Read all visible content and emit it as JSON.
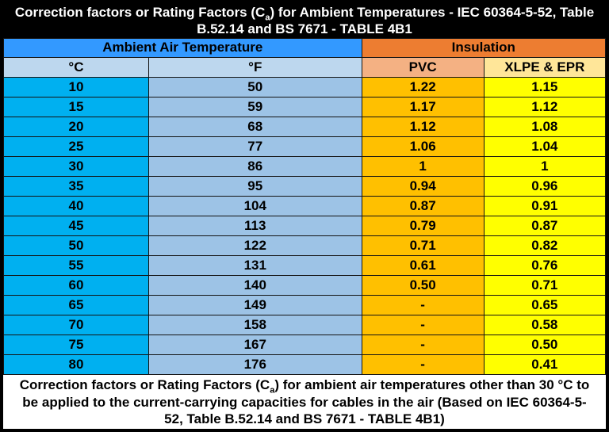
{
  "title": {
    "pre": "Correction factors or Rating Factors (C",
    "sub": "a",
    "post": ") for Ambient Temperatures - IEC 60364-5-52, Table B.52.14 and BS 7671 - TABLE 4B1"
  },
  "footer": {
    "pre": "Correction factors or Rating Factors (C",
    "sub": "a",
    "post": ") for ambient air temperatures other than 30 °C to be applied to the current-carrying capacities for cables in the air (Based on IEC 60364-5-52, Table B.52.14 and BS 7671 - TABLE 4B1)"
  },
  "chart_data": {
    "type": "table",
    "title": "Correction factors or Rating Factors (Ca) for Ambient Temperatures - IEC 60364-5-52, Table B.52.14 and BS 7671 - TABLE 4B1",
    "column_groups": [
      "Ambient Air Temperature",
      "Insulation"
    ],
    "columns": [
      "°C",
      "°F",
      "PVC",
      "XLPE & EPR"
    ],
    "rows": [
      [
        "10",
        "50",
        "1.22",
        "1.15"
      ],
      [
        "15",
        "59",
        "1.17",
        "1.12"
      ],
      [
        "20",
        "68",
        "1.12",
        "1.08"
      ],
      [
        "25",
        "77",
        "1.06",
        "1.04"
      ],
      [
        "30",
        "86",
        "1",
        "1"
      ],
      [
        "35",
        "95",
        "0.94",
        "0.96"
      ],
      [
        "40",
        "104",
        "0.87",
        "0.91"
      ],
      [
        "45",
        "113",
        "0.79",
        "0.87"
      ],
      [
        "50",
        "122",
        "0.71",
        "0.82"
      ],
      [
        "55",
        "131",
        "0.61",
        "0.76"
      ],
      [
        "60",
        "140",
        "0.50",
        "0.71"
      ],
      [
        "65",
        "149",
        "-",
        "0.65"
      ],
      [
        "70",
        "158",
        "-",
        "0.58"
      ],
      [
        "75",
        "167",
        "-",
        "0.50"
      ],
      [
        "80",
        "176",
        "-",
        "0.41"
      ]
    ],
    "caption": "Correction factors or Rating Factors (Ca) for ambient air temperatures other than 30 °C to be applied to the current-carrying capacities for cables in the air (Based on IEC 60364-5-52, Table B.52.14 and BS 7671 - TABLE 4B1)"
  },
  "colors": {
    "title_bg": "#000000",
    "title_text": "#ffffff",
    "ambient_group_bg": "#3399ff",
    "insulation_group_bg": "#ed7d31",
    "c_f_header_bg": "#bdd7ee",
    "pvc_header_bg": "#f4b183",
    "xlpe_header_bg": "#ffe699",
    "c_cell_bg": "#00b0f0",
    "f_cell_bg": "#9dc3e6",
    "pvc_cell_bg": "#ffc000",
    "xlpe_cell_bg": "#ffff00",
    "border": "#141414",
    "caption_bg": "#ffffff"
  }
}
